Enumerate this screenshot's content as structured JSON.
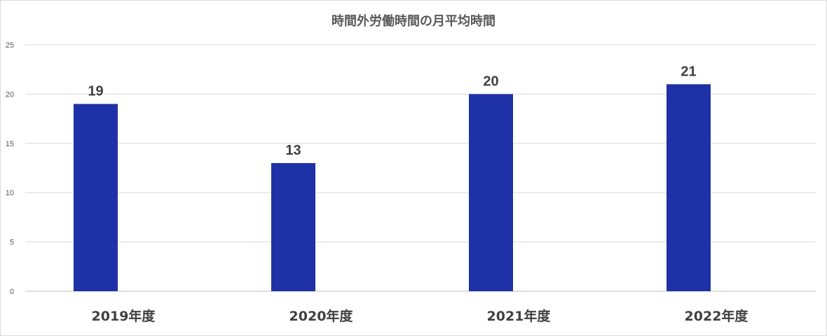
{
  "chart_data": {
    "type": "bar",
    "title": "時間外労働時間の月平均時間",
    "categories": [
      "2019年度",
      "2020年度",
      "2021年度",
      "2022年度"
    ],
    "values": [
      19,
      13,
      20,
      21
    ],
    "data_labels": [
      "19",
      "13",
      "20",
      "21"
    ],
    "xlabel": "",
    "ylabel": "",
    "ylim": [
      0,
      25
    ],
    "yticks": [
      0,
      5,
      10,
      15,
      20,
      25
    ],
    "grid": true,
    "legend": "none",
    "bar_color": "#1f31a6"
  }
}
